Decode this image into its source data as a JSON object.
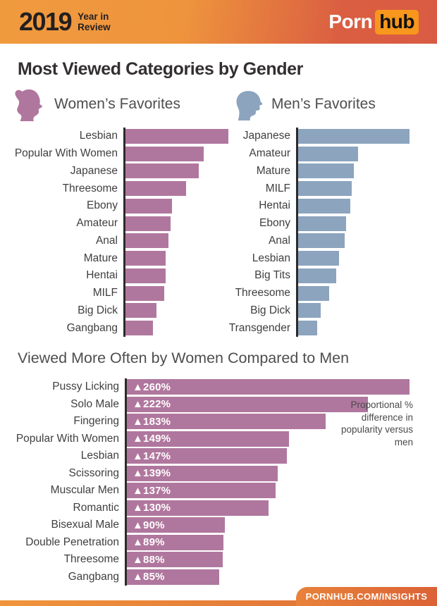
{
  "header": {
    "year": "2019",
    "subtitle_line1": "Year in",
    "subtitle_line2": "Review",
    "brand": {
      "porn": "Porn",
      "hub": "hub"
    }
  },
  "page_title": "Most Viewed Categories by Gender",
  "colors": {
    "women_bar": "#B0779E",
    "men_bar": "#8CA4BE",
    "axis": "#2D2A2B",
    "header_gradient_left": "#F09A3E",
    "header_gradient_right": "#D95B43",
    "logo_orange": "#F7971D",
    "footer_orange_left": "#F0953C",
    "footer_orange_right": "#DD6936"
  },
  "chart_data": [
    {
      "id": "women_favorites",
      "type": "bar",
      "orientation": "horizontal",
      "title": "Women’s Favorites",
      "icon": "woman-profile-icon",
      "bar_color": "#B0779E",
      "categories": [
        "Lesbian",
        "Popular With Women",
        "Japanese",
        "Threesome",
        "Ebony",
        "Amateur",
        "Anal",
        "Mature",
        "Hentai",
        "MILF",
        "Big Dick",
        "Gangbang"
      ],
      "values": [
        100,
        76,
        71,
        59,
        45,
        44,
        42,
        39,
        39,
        38,
        30,
        27
      ],
      "value_units": "relative bar length, % of longest bar (no numeric labels shown in chart)",
      "xlim": [
        0,
        100
      ],
      "grid": false,
      "legend": false
    },
    {
      "id": "men_favorites",
      "type": "bar",
      "orientation": "horizontal",
      "title": "Men’s Favorites",
      "icon": "man-profile-icon",
      "bar_color": "#8CA4BE",
      "categories": [
        "Japanese",
        "Amateur",
        "Mature",
        "MILF",
        "Hentai",
        "Ebony",
        "Anal",
        "Lesbian",
        "Big Tits",
        "Threesome",
        "Big Dick",
        "Transgender"
      ],
      "values": [
        100,
        54,
        50,
        48,
        47,
        43,
        42,
        37,
        34,
        28,
        20,
        17
      ],
      "value_units": "relative bar length, % of longest bar (no numeric labels shown in chart)",
      "xlim": [
        0,
        100
      ],
      "grid": false,
      "legend": false
    },
    {
      "id": "women_vs_men_difference",
      "type": "bar",
      "orientation": "horizontal",
      "title": "Viewed More Often by Women Compared to Men",
      "bar_color": "#B0779E",
      "categories": [
        "Pussy Licking",
        "Solo Male",
        "Fingering",
        "Popular With Women",
        "Lesbian",
        "Scissoring",
        "Muscular Men",
        "Romantic",
        "Bisexual Male",
        "Double Penetration",
        "Threesome",
        "Gangbang"
      ],
      "values": [
        260,
        222,
        183,
        149,
        147,
        139,
        137,
        130,
        90,
        89,
        88,
        85
      ],
      "labels": [
        "▲260%",
        "▲222%",
        "▲183%",
        "▲149%",
        "▲147%",
        "▲139%",
        "▲137%",
        "▲130%",
        "▲90%",
        "▲89%",
        "▲88%",
        "▲85%"
      ],
      "value_units": "percent",
      "annotation": "Proportional % difference in popularity versus men",
      "xlim": [
        0,
        260
      ],
      "grid": false,
      "legend": false
    }
  ],
  "footer": {
    "link": "PORNHUB.COM/INSIGHTS"
  }
}
